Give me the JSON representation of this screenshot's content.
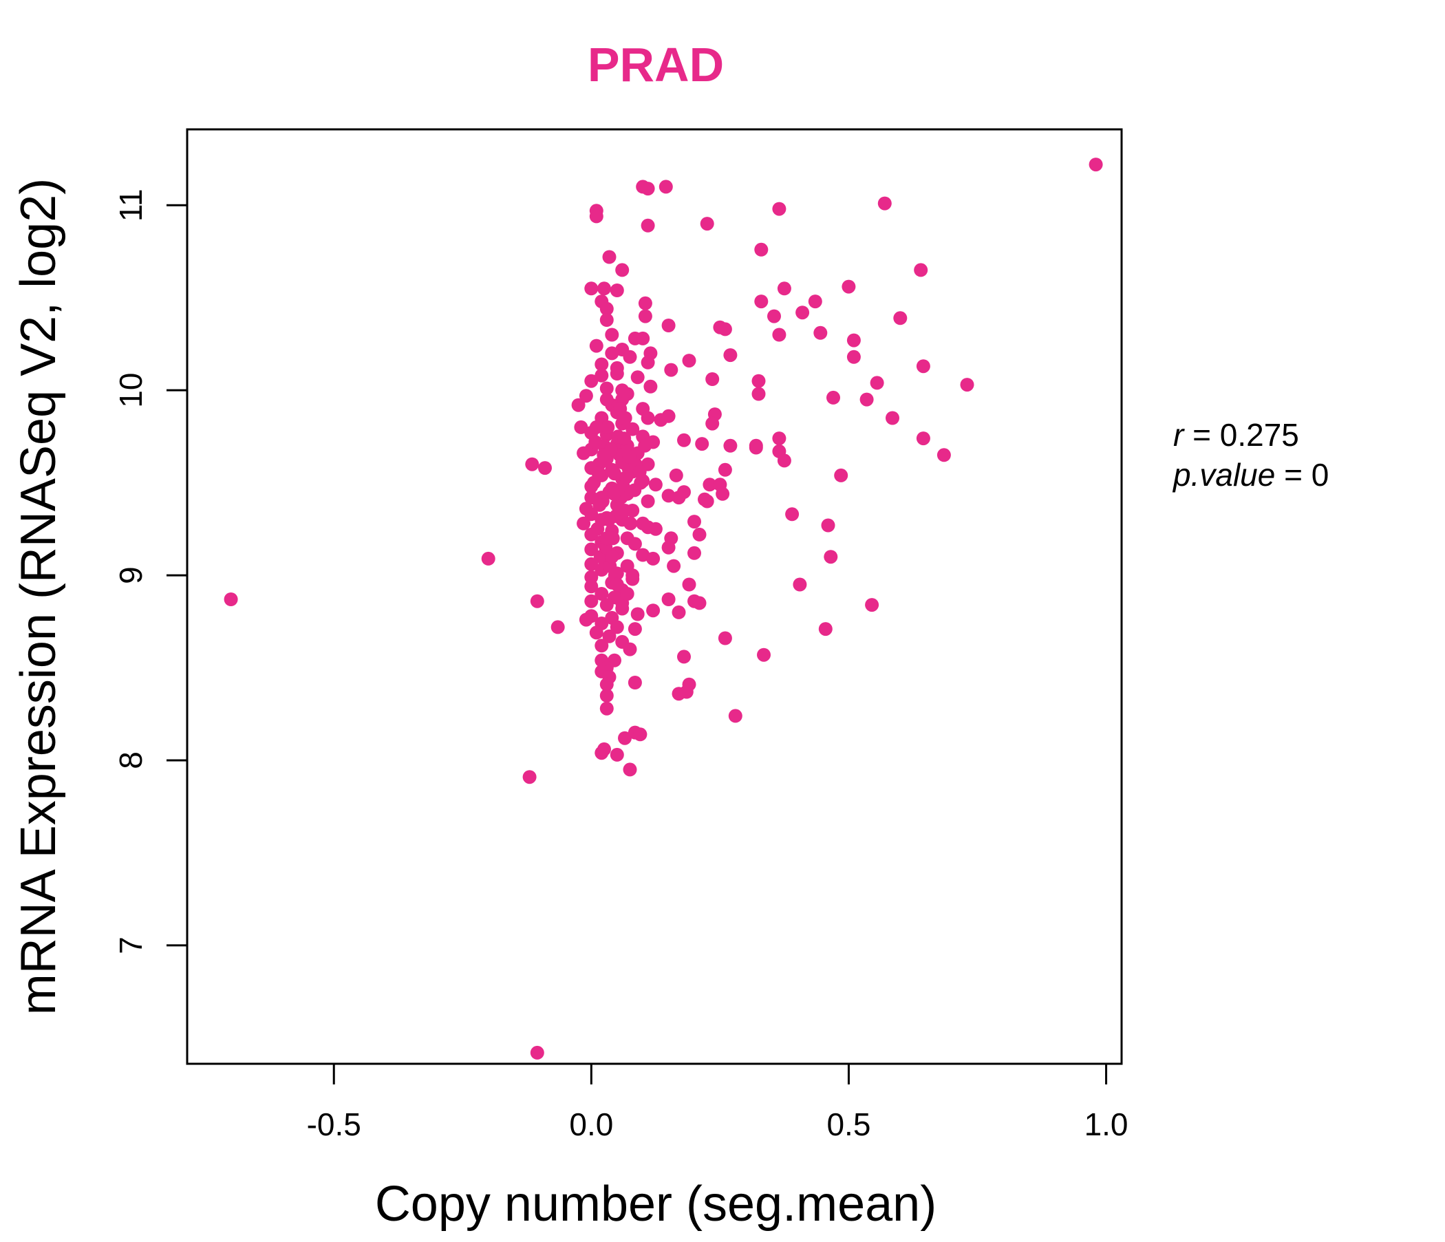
{
  "chart_data": {
    "type": "scatter",
    "title": "PRAD",
    "xlabel": "Copy number (seg.mean)",
    "ylabel": "mRNA Expression (RNASeq V2, log2)",
    "xlim": [
      -0.785,
      1.03
    ],
    "ylim": [
      6.36,
      11.41
    ],
    "xticks": [
      -0.5,
      0.0,
      0.5,
      1.0
    ],
    "xtick_labels": [
      "-0.5",
      "0.0",
      "0.5",
      "1.0"
    ],
    "yticks": [
      7,
      8,
      9,
      10,
      11
    ],
    "ytick_labels": [
      "7",
      "8",
      "9",
      "10",
      "11"
    ],
    "grid": false,
    "legend": "none",
    "point_color": "#E7298A",
    "stats": {
      "r_label": "r",
      "r_value": "0.275",
      "p_label": "p.value",
      "p_value": "0"
    },
    "points": [
      [
        -0.7,
        8.87
      ],
      [
        -0.2,
        9.09
      ],
      [
        -0.12,
        7.91
      ],
      [
        -0.115,
        9.6
      ],
      [
        -0.105,
        8.86
      ],
      [
        -0.09,
        9.58
      ],
      [
        -0.065,
        8.72
      ],
      [
        -0.105,
        6.42
      ],
      [
        0.98,
        11.22
      ],
      [
        0.57,
        11.01
      ],
      [
        0.365,
        10.98
      ],
      [
        0.64,
        10.65
      ],
      [
        0.375,
        10.55
      ],
      [
        0.5,
        10.56
      ],
      [
        0.435,
        10.48
      ],
      [
        0.41,
        10.42
      ],
      [
        0.33,
        10.48
      ],
      [
        0.355,
        10.4
      ],
      [
        0.6,
        10.39
      ],
      [
        0.445,
        10.31
      ],
      [
        0.365,
        10.3
      ],
      [
        0.51,
        10.27
      ],
      [
        0.51,
        10.18
      ],
      [
        0.645,
        10.13
      ],
      [
        0.555,
        10.04
      ],
      [
        0.73,
        10.03
      ],
      [
        0.535,
        9.95
      ],
      [
        0.47,
        9.96
      ],
      [
        0.585,
        9.85
      ],
      [
        0.645,
        9.74
      ],
      [
        0.685,
        9.65
      ],
      [
        0.365,
        9.74
      ],
      [
        0.365,
        9.67
      ],
      [
        0.375,
        9.62
      ],
      [
        0.485,
        9.54
      ],
      [
        0.39,
        9.33
      ],
      [
        0.46,
        9.27
      ],
      [
        0.465,
        9.1
      ],
      [
        0.405,
        8.95
      ],
      [
        0.545,
        8.84
      ],
      [
        0.455,
        8.71
      ],
      [
        0.335,
        8.57
      ],
      [
        0.33,
        10.76
      ],
      [
        0.325,
        10.05
      ],
      [
        0.325,
        9.98
      ],
      [
        0.32,
        9.7
      ],
      [
        0.32,
        9.69
      ],
      [
        0.225,
        10.9
      ],
      [
        0.25,
        10.34
      ],
      [
        0.26,
        10.33
      ],
      [
        0.27,
        10.19
      ],
      [
        0.235,
        10.06
      ],
      [
        0.24,
        9.87
      ],
      [
        0.235,
        9.82
      ],
      [
        0.215,
        9.71
      ],
      [
        0.27,
        9.7
      ],
      [
        0.26,
        9.57
      ],
      [
        0.23,
        9.49
      ],
      [
        0.25,
        9.49
      ],
      [
        0.255,
        9.44
      ],
      [
        0.22,
        9.41
      ],
      [
        0.225,
        9.4
      ],
      [
        0.2,
        9.29
      ],
      [
        0.21,
        9.22
      ],
      [
        0.2,
        9.12
      ],
      [
        0.19,
        8.95
      ],
      [
        0.2,
        8.86
      ],
      [
        0.21,
        8.85
      ],
      [
        0.26,
        8.66
      ],
      [
        0.18,
        8.56
      ],
      [
        0.19,
        8.41
      ],
      [
        0.185,
        8.37
      ],
      [
        0.17,
        8.36
      ],
      [
        0.28,
        8.24
      ],
      [
        0.1,
        11.1
      ],
      [
        0.11,
        11.09
      ],
      [
        0.145,
        11.1
      ],
      [
        0.01,
        10.97
      ],
      [
        0.01,
        10.94
      ],
      [
        0.11,
        10.89
      ],
      [
        0.035,
        10.72
      ],
      [
        0.06,
        10.65
      ],
      [
        0.0,
        10.55
      ],
      [
        0.025,
        10.55
      ],
      [
        0.05,
        10.54
      ],
      [
        0.105,
        10.47
      ],
      [
        0.02,
        10.48
      ],
      [
        0.03,
        10.44
      ],
      [
        0.105,
        10.4
      ],
      [
        0.03,
        10.38
      ],
      [
        0.15,
        10.35
      ],
      [
        0.04,
        10.3
      ],
      [
        0.085,
        10.28
      ],
      [
        0.1,
        10.28
      ],
      [
        0.01,
        10.24
      ],
      [
        0.06,
        10.22
      ],
      [
        0.115,
        10.2
      ],
      [
        0.19,
        10.16
      ],
      [
        0.075,
        10.18
      ],
      [
        0.02,
        10.14
      ],
      [
        0.11,
        10.15
      ],
      [
        0.155,
        10.11
      ],
      [
        0.05,
        10.09
      ],
      [
        0.0,
        10.05
      ],
      [
        0.09,
        10.07
      ],
      [
        0.115,
        10.02
      ],
      [
        0.03,
        10.01
      ],
      [
        0.07,
        9.98
      ],
      [
        -0.01,
        9.97
      ],
      [
        0.06,
        9.95
      ],
      [
        0.04,
        9.92
      ],
      [
        -0.025,
        9.92
      ],
      [
        0.1,
        9.9
      ],
      [
        0.05,
        9.88
      ],
      [
        0.11,
        9.85
      ],
      [
        0.135,
        9.84
      ],
      [
        0.15,
        9.86
      ],
      [
        0.02,
        9.85
      ],
      [
        0.06,
        9.82
      ],
      [
        -0.02,
        9.8
      ],
      [
        0.08,
        9.79
      ],
      [
        0.0,
        9.77
      ],
      [
        0.03,
        9.76
      ],
      [
        0.1,
        9.75
      ],
      [
        0.18,
        9.73
      ],
      [
        0.12,
        9.72
      ],
      [
        0.05,
        9.71
      ],
      [
        0.07,
        9.7
      ],
      [
        0.0,
        9.68
      ],
      [
        -0.015,
        9.66
      ],
      [
        0.09,
        9.66
      ],
      [
        0.03,
        9.63
      ],
      [
        0.06,
        9.61
      ],
      [
        0.11,
        9.6
      ],
      [
        0.0,
        9.58
      ],
      [
        0.04,
        9.57
      ],
      [
        0.08,
        9.56
      ],
      [
        0.02,
        9.54
      ],
      [
        0.165,
        9.54
      ],
      [
        0.06,
        9.52
      ],
      [
        0.1,
        9.51
      ],
      [
        0.125,
        9.49
      ],
      [
        0.0,
        9.48
      ],
      [
        0.04,
        9.47
      ],
      [
        0.18,
        9.45
      ],
      [
        0.07,
        9.44
      ],
      [
        0.15,
        9.43
      ],
      [
        0.17,
        9.42
      ],
      [
        0.02,
        9.42
      ],
      [
        0.11,
        9.4
      ],
      [
        0.05,
        9.38
      ],
      [
        -0.01,
        9.36
      ],
      [
        0.08,
        9.35
      ],
      [
        0.0,
        9.33
      ],
      [
        0.03,
        9.31
      ],
      [
        0.06,
        9.3
      ],
      [
        0.1,
        9.28
      ],
      [
        -0.015,
        9.28
      ],
      [
        0.11,
        9.26
      ],
      [
        0.125,
        9.25
      ],
      [
        0.04,
        9.24
      ],
      [
        0.0,
        9.22
      ],
      [
        0.07,
        9.2
      ],
      [
        0.155,
        9.2
      ],
      [
        0.02,
        9.18
      ],
      [
        0.085,
        9.17
      ],
      [
        0.15,
        9.15
      ],
      [
        0.0,
        9.14
      ],
      [
        0.05,
        9.12
      ],
      [
        0.1,
        9.11
      ],
      [
        0.12,
        9.09
      ],
      [
        0.03,
        9.08
      ],
      [
        0.0,
        9.06
      ],
      [
        0.07,
        9.05
      ],
      [
        0.16,
        9.05
      ],
      [
        0.02,
        9.03
      ],
      [
        0.05,
        9.01
      ],
      [
        0.0,
        8.99
      ],
      [
        0.08,
        8.98
      ],
      [
        0.04,
        8.96
      ],
      [
        0.0,
        8.94
      ],
      [
        0.06,
        8.92
      ],
      [
        0.02,
        8.9
      ],
      [
        0.045,
        8.88
      ],
      [
        0.15,
        8.87
      ],
      [
        0.0,
        8.86
      ],
      [
        0.03,
        8.84
      ],
      [
        0.06,
        8.82
      ],
      [
        0.12,
        8.81
      ],
      [
        0.17,
        8.8
      ],
      [
        0.09,
        8.79
      ],
      [
        0.0,
        8.78
      ],
      [
        0.04,
        8.77
      ],
      [
        -0.01,
        8.76
      ],
      [
        0.02,
        8.74
      ],
      [
        0.05,
        8.72
      ],
      [
        0.085,
        8.71
      ],
      [
        0.01,
        8.69
      ],
      [
        0.035,
        8.67
      ],
      [
        0.06,
        8.64
      ],
      [
        0.075,
        8.6
      ],
      [
        0.02,
        8.54
      ],
      [
        0.045,
        8.54
      ],
      [
        0.03,
        8.5
      ],
      [
        0.02,
        8.48
      ],
      [
        0.035,
        8.45
      ],
      [
        0.03,
        8.41
      ],
      [
        0.085,
        8.42
      ],
      [
        0.03,
        8.35
      ],
      [
        0.03,
        8.28
      ],
      [
        0.085,
        8.15
      ],
      [
        0.065,
        8.12
      ],
      [
        0.095,
        8.14
      ],
      [
        0.02,
        8.04
      ],
      [
        0.025,
        8.06
      ],
      [
        0.05,
        8.03
      ],
      [
        0.075,
        7.95
      ],
      [
        0.005,
        9.5
      ],
      [
        0.015,
        9.6
      ],
      [
        0.025,
        9.7
      ],
      [
        0.035,
        9.45
      ],
      [
        0.045,
        9.55
      ],
      [
        0.055,
        9.65
      ],
      [
        0.065,
        9.35
      ],
      [
        0.012,
        9.25
      ],
      [
        0.022,
        9.4
      ],
      [
        0.032,
        9.8
      ],
      [
        0.042,
        9.2
      ],
      [
        0.052,
        9.75
      ],
      [
        0.062,
        9.48
      ],
      [
        0.072,
        9.58
      ],
      [
        0.018,
        9.1
      ],
      [
        0.028,
        9.15
      ],
      [
        0.038,
        9.68
      ],
      [
        0.048,
        9.32
      ],
      [
        0.058,
        9.42
      ],
      [
        0.068,
        9.53
      ],
      [
        0.008,
        9.72
      ],
      [
        0.016,
        9.38
      ],
      [
        0.026,
        9.62
      ],
      [
        0.036,
        9.05
      ],
      [
        0.046,
        9.0
      ],
      [
        0.056,
        9.9
      ],
      [
        0.066,
        9.85
      ],
      [
        0.076,
        9.28
      ],
      [
        0.086,
        9.6
      ],
      [
        0.096,
        9.5
      ],
      [
        0.014,
        9.55
      ],
      [
        0.024,
        9.65
      ],
      [
        0.034,
        9.3
      ],
      [
        0.044,
        9.44
      ],
      [
        0.054,
        9.36
      ],
      [
        0.064,
        9.74
      ],
      [
        0.074,
        9.64
      ],
      [
        0.084,
        9.46
      ],
      [
        0.094,
        9.56
      ],
      [
        0.104,
        9.7
      ],
      [
        0.04,
        10.2
      ],
      [
        0.05,
        10.12
      ],
      [
        0.06,
        10.0
      ],
      [
        0.02,
        10.08
      ],
      [
        0.03,
        9.95
      ],
      [
        0.0,
        9.42
      ],
      [
        0.01,
        9.8
      ],
      [
        0.02,
        9.3
      ],
      [
        0.03,
        9.2
      ],
      [
        0.04,
        9.1
      ],
      [
        0.05,
        8.95
      ],
      [
        0.06,
        8.85
      ],
      [
        0.07,
        8.9
      ],
      [
        0.08,
        9.0
      ],
      [
        0.02,
        8.62
      ]
    ]
  }
}
